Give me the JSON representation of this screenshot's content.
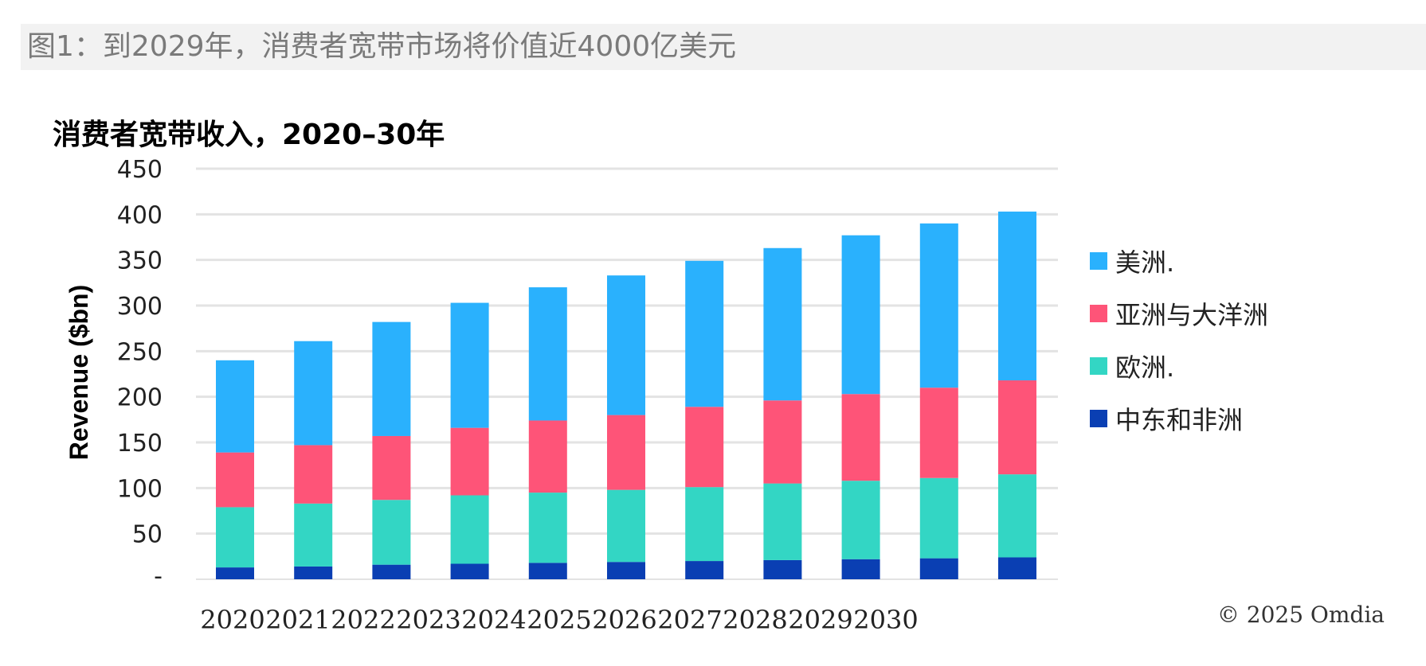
{
  "header": {
    "caption": "图1：到2029年，消费者宽带市场将价值近4000亿美元"
  },
  "chart_data": {
    "type": "bar",
    "stacked": true,
    "title": "消费者宽带收入，2020–30年",
    "xlabel": "",
    "ylabel": "Revenue ($bn)",
    "ylim": [
      0,
      450
    ],
    "yticks": [
      {
        "value": 0,
        "label": "-"
      },
      {
        "value": 50,
        "label": "50"
      },
      {
        "value": 100,
        "label": "100"
      },
      {
        "value": 150,
        "label": "150"
      },
      {
        "value": 200,
        "label": "200"
      },
      {
        "value": 250,
        "label": "250"
      },
      {
        "value": 300,
        "label": "300"
      },
      {
        "value": 350,
        "label": "350"
      },
      {
        "value": 400,
        "label": "400"
      },
      {
        "value": 450,
        "label": "450"
      }
    ],
    "xtick_labels": [
      "2020",
      "2021",
      "2022",
      "2023",
      "2024",
      "2025",
      "2026",
      "2027",
      "2028",
      "2029",
      "2030"
    ],
    "grid": true,
    "legend_position": "right",
    "series": [
      {
        "name": "中东和非洲",
        "color": "#0a3fb3",
        "values": [
          13,
          14,
          16,
          17,
          18,
          19,
          20,
          21,
          22,
          23,
          24
        ]
      },
      {
        "name": "欧洲.",
        "color": "#33d6c4",
        "values": [
          66,
          69,
          71,
          75,
          77,
          79,
          81,
          84,
          86,
          88,
          91
        ]
      },
      {
        "name": "亚洲与大洋洲",
        "color": "#fe5478",
        "values": [
          60,
          64,
          70,
          74,
          79,
          82,
          88,
          91,
          95,
          99,
          103
        ]
      },
      {
        "name": "美洲.",
        "color": "#2ab1fd",
        "values": [
          101,
          114,
          125,
          137,
          146,
          153,
          160,
          167,
          174,
          180,
          185
        ]
      }
    ],
    "legend_order": [
      "美洲.",
      "亚洲与大洋洲",
      "欧洲.",
      "中东和非洲"
    ]
  },
  "footer": {
    "copyright": "© 2025 Omdia"
  }
}
